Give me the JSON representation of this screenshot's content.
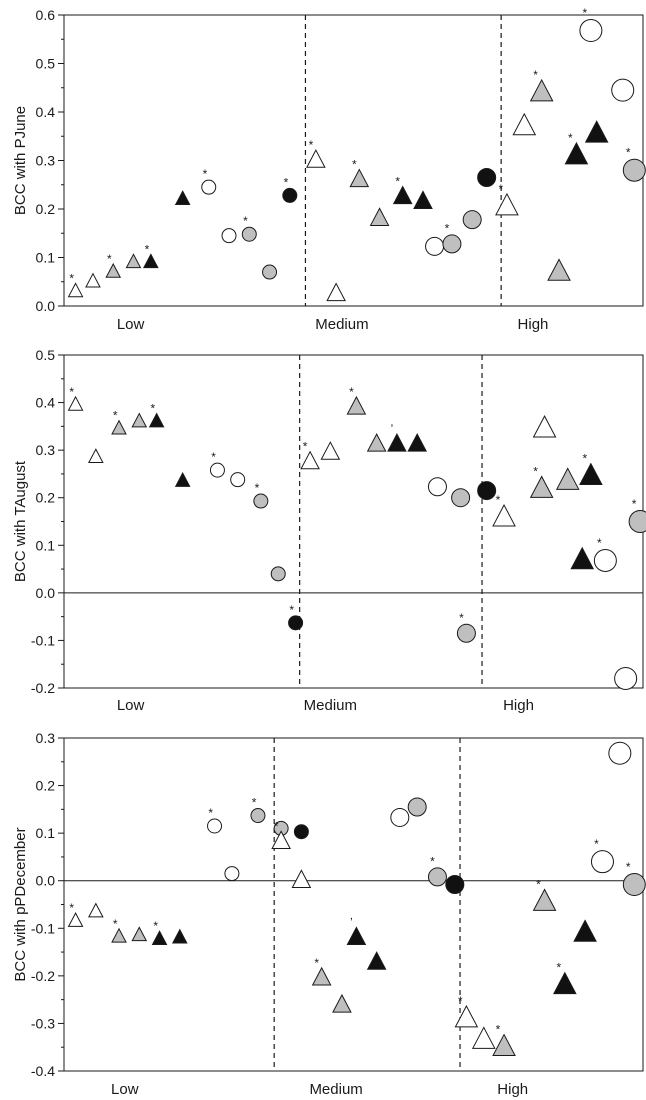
{
  "chart_data": [
    {
      "type": "scatter",
      "ylabel": "BCC with PJune",
      "ylim": [
        0.0,
        0.6
      ],
      "yticks": [
        0.0,
        0.1,
        0.2,
        0.3,
        0.4,
        0.5,
        0.6
      ],
      "tick_decimals": 1,
      "x_range": [
        0,
        10
      ],
      "groups": [
        "Low",
        "Medium",
        "High"
      ],
      "group_label_x": [
        1.15,
        4.8,
        8.1
      ],
      "dividers": [
        4.17,
        7.55
      ],
      "zero_line": false,
      "points": [
        {
          "x": 0.2,
          "y": 0.03,
          "shape": "triangle",
          "fill": "white",
          "size": "small",
          "star": "*"
        },
        {
          "x": 0.5,
          "y": 0.05,
          "shape": "triangle",
          "fill": "white",
          "size": "small",
          "star": ""
        },
        {
          "x": 0.85,
          "y": 0.07,
          "shape": "triangle",
          "fill": "gray",
          "size": "small",
          "star": "*"
        },
        {
          "x": 1.2,
          "y": 0.09,
          "shape": "triangle",
          "fill": "gray",
          "size": "small",
          "star": ""
        },
        {
          "x": 1.5,
          "y": 0.09,
          "shape": "triangle",
          "fill": "black",
          "size": "small",
          "star": "*"
        },
        {
          "x": 2.05,
          "y": 0.22,
          "shape": "triangle",
          "fill": "black",
          "size": "small",
          "star": ""
        },
        {
          "x": 2.5,
          "y": 0.245,
          "shape": "circle",
          "fill": "white",
          "size": "small",
          "star": "*"
        },
        {
          "x": 2.85,
          "y": 0.145,
          "shape": "circle",
          "fill": "white",
          "size": "small",
          "star": ""
        },
        {
          "x": 3.2,
          "y": 0.148,
          "shape": "circle",
          "fill": "gray",
          "size": "small",
          "star": "*"
        },
        {
          "x": 3.55,
          "y": 0.07,
          "shape": "circle",
          "fill": "gray",
          "size": "small",
          "star": ""
        },
        {
          "x": 3.9,
          "y": 0.228,
          "shape": "circle",
          "fill": "black",
          "size": "small",
          "star": "*"
        },
        {
          "x": 4.35,
          "y": 0.3,
          "shape": "triangle",
          "fill": "white",
          "size": "medium",
          "star": "*"
        },
        {
          "x": 4.7,
          "y": 0.025,
          "shape": "triangle",
          "fill": "white",
          "size": "medium",
          "star": ""
        },
        {
          "x": 5.1,
          "y": 0.26,
          "shape": "triangle",
          "fill": "gray",
          "size": "medium",
          "star": "*"
        },
        {
          "x": 5.45,
          "y": 0.18,
          "shape": "triangle",
          "fill": "gray",
          "size": "medium",
          "star": ""
        },
        {
          "x": 5.85,
          "y": 0.225,
          "shape": "triangle",
          "fill": "black",
          "size": "medium",
          "star": "*"
        },
        {
          "x": 6.2,
          "y": 0.215,
          "shape": "triangle",
          "fill": "black",
          "size": "medium",
          "star": ""
        },
        {
          "x": 6.4,
          "y": 0.123,
          "shape": "circle",
          "fill": "white",
          "size": "medium",
          "star": ""
        },
        {
          "x": 6.7,
          "y": 0.128,
          "shape": "circle",
          "fill": "gray",
          "size": "medium",
          "star": "*"
        },
        {
          "x": 7.05,
          "y": 0.178,
          "shape": "circle",
          "fill": "gray",
          "size": "medium",
          "star": ""
        },
        {
          "x": 7.3,
          "y": 0.265,
          "shape": "circle",
          "fill": "black",
          "size": "medium",
          "star": ""
        },
        {
          "x": 7.65,
          "y": 0.205,
          "shape": "triangle",
          "fill": "white",
          "size": "large",
          "star": "*"
        },
        {
          "x": 7.95,
          "y": 0.37,
          "shape": "triangle",
          "fill": "white",
          "size": "large",
          "star": ""
        },
        {
          "x": 8.25,
          "y": 0.44,
          "shape": "triangle",
          "fill": "gray",
          "size": "large",
          "star": "*"
        },
        {
          "x": 8.55,
          "y": 0.07,
          "shape": "triangle",
          "fill": "gray",
          "size": "large",
          "star": ""
        },
        {
          "x": 8.85,
          "y": 0.31,
          "shape": "triangle",
          "fill": "black",
          "size": "large",
          "star": "*"
        },
        {
          "x": 9.2,
          "y": 0.355,
          "shape": "triangle",
          "fill": "black",
          "size": "large",
          "star": ""
        },
        {
          "x": 9.1,
          "y": 0.568,
          "shape": "circle",
          "fill": "white",
          "size": "large",
          "star": "*"
        },
        {
          "x": 9.65,
          "y": 0.445,
          "shape": "circle",
          "fill": "white",
          "size": "large",
          "star": ""
        },
        {
          "x": 9.85,
          "y": 0.28,
          "shape": "circle",
          "fill": "gray",
          "size": "large",
          "star": "*"
        }
      ]
    },
    {
      "type": "scatter",
      "ylabel": "BCC with TAugust",
      "ylim": [
        -0.2,
        0.5
      ],
      "yticks": [
        -0.2,
        -0.1,
        0.0,
        0.1,
        0.2,
        0.3,
        0.4,
        0.5
      ],
      "tick_decimals": 1,
      "x_range": [
        0,
        10
      ],
      "groups": [
        "Low",
        "Medium",
        "High"
      ],
      "group_label_x": [
        1.15,
        4.6,
        7.85
      ],
      "dividers": [
        4.07,
        7.22
      ],
      "zero_line": true,
      "points": [
        {
          "x": 0.2,
          "y": 0.395,
          "shape": "triangle",
          "fill": "white",
          "size": "small",
          "star": "*"
        },
        {
          "x": 0.55,
          "y": 0.285,
          "shape": "triangle",
          "fill": "white",
          "size": "small",
          "star": ""
        },
        {
          "x": 0.95,
          "y": 0.345,
          "shape": "triangle",
          "fill": "gray",
          "size": "small",
          "star": "*"
        },
        {
          "x": 1.3,
          "y": 0.36,
          "shape": "triangle",
          "fill": "gray",
          "size": "small",
          "star": ""
        },
        {
          "x": 1.6,
          "y": 0.36,
          "shape": "triangle",
          "fill": "black",
          "size": "small",
          "star": "*"
        },
        {
          "x": 2.05,
          "y": 0.235,
          "shape": "triangle",
          "fill": "black",
          "size": "small",
          "star": ""
        },
        {
          "x": 2.65,
          "y": 0.258,
          "shape": "circle",
          "fill": "white",
          "size": "small",
          "star": "*"
        },
        {
          "x": 3.0,
          "y": 0.238,
          "shape": "circle",
          "fill": "white",
          "size": "small",
          "star": ""
        },
        {
          "x": 3.4,
          "y": 0.193,
          "shape": "circle",
          "fill": "gray",
          "size": "small",
          "star": "*"
        },
        {
          "x": 3.7,
          "y": 0.04,
          "shape": "circle",
          "fill": "gray",
          "size": "small",
          "star": ""
        },
        {
          "x": 4.0,
          "y": -0.063,
          "shape": "circle",
          "fill": "black",
          "size": "small",
          "star": "*"
        },
        {
          "x": 4.25,
          "y": 0.275,
          "shape": "triangle",
          "fill": "white",
          "size": "medium",
          "star": "*"
        },
        {
          "x": 4.6,
          "y": 0.295,
          "shape": "triangle",
          "fill": "white",
          "size": "medium",
          "star": ""
        },
        {
          "x": 5.05,
          "y": 0.39,
          "shape": "triangle",
          "fill": "gray",
          "size": "medium",
          "star": "*"
        },
        {
          "x": 5.4,
          "y": 0.312,
          "shape": "triangle",
          "fill": "gray",
          "size": "medium",
          "star": ""
        },
        {
          "x": 5.75,
          "y": 0.312,
          "shape": "triangle",
          "fill": "black",
          "size": "medium",
          "star": "ʼ"
        },
        {
          "x": 6.1,
          "y": 0.312,
          "shape": "triangle",
          "fill": "black",
          "size": "medium",
          "star": ""
        },
        {
          "x": 6.45,
          "y": 0.223,
          "shape": "circle",
          "fill": "white",
          "size": "medium",
          "star": ""
        },
        {
          "x": 6.85,
          "y": 0.2,
          "shape": "circle",
          "fill": "gray",
          "size": "medium",
          "star": ""
        },
        {
          "x": 6.95,
          "y": -0.085,
          "shape": "circle",
          "fill": "gray",
          "size": "medium",
          "star": "*"
        },
        {
          "x": 7.3,
          "y": 0.215,
          "shape": "circle",
          "fill": "black",
          "size": "medium",
          "star": ""
        },
        {
          "x": 7.6,
          "y": 0.158,
          "shape": "triangle",
          "fill": "white",
          "size": "large",
          "star": "*"
        },
        {
          "x": 8.3,
          "y": 0.345,
          "shape": "triangle",
          "fill": "white",
          "size": "large",
          "star": ""
        },
        {
          "x": 8.25,
          "y": 0.218,
          "shape": "triangle",
          "fill": "gray",
          "size": "large",
          "star": "*"
        },
        {
          "x": 8.7,
          "y": 0.235,
          "shape": "triangle",
          "fill": "gray",
          "size": "large",
          "star": ""
        },
        {
          "x": 9.1,
          "y": 0.245,
          "shape": "triangle",
          "fill": "black",
          "size": "large",
          "star": "*"
        },
        {
          "x": 8.95,
          "y": 0.068,
          "shape": "triangle",
          "fill": "black",
          "size": "large",
          "star": ""
        },
        {
          "x": 9.35,
          "y": 0.068,
          "shape": "circle",
          "fill": "white",
          "size": "large",
          "star": "*"
        },
        {
          "x": 9.7,
          "y": -0.18,
          "shape": "circle",
          "fill": "white",
          "size": "large",
          "star": ""
        },
        {
          "x": 9.95,
          "y": 0.15,
          "shape": "circle",
          "fill": "gray",
          "size": "large",
          "star": "*"
        }
      ]
    },
    {
      "type": "scatter",
      "ylabel": "BCC with pPDecember",
      "ylim": [
        -0.4,
        0.3
      ],
      "yticks": [
        -0.4,
        -0.3,
        -0.2,
        -0.1,
        0.0,
        0.1,
        0.2,
        0.3
      ],
      "tick_decimals": 1,
      "x_range": [
        0,
        10
      ],
      "groups": [
        "Low",
        "Medium",
        "High"
      ],
      "group_label_x": [
        1.05,
        4.7,
        7.75
      ],
      "dividers": [
        3.63,
        6.84
      ],
      "zero_line": true,
      "points": [
        {
          "x": 0.2,
          "y": -0.085,
          "shape": "triangle",
          "fill": "white",
          "size": "small",
          "star": "*"
        },
        {
          "x": 0.55,
          "y": -0.065,
          "shape": "triangle",
          "fill": "white",
          "size": "small",
          "star": ""
        },
        {
          "x": 0.95,
          "y": -0.118,
          "shape": "triangle",
          "fill": "gray",
          "size": "small",
          "star": "*"
        },
        {
          "x": 1.3,
          "y": -0.115,
          "shape": "triangle",
          "fill": "gray",
          "size": "small",
          "star": ""
        },
        {
          "x": 1.65,
          "y": -0.123,
          "shape": "triangle",
          "fill": "black",
          "size": "small",
          "star": "*"
        },
        {
          "x": 2.0,
          "y": -0.12,
          "shape": "triangle",
          "fill": "black",
          "size": "small",
          "star": ""
        },
        {
          "x": 2.6,
          "y": 0.115,
          "shape": "circle",
          "fill": "white",
          "size": "small",
          "star": "*"
        },
        {
          "x": 2.9,
          "y": 0.015,
          "shape": "circle",
          "fill": "white",
          "size": "small",
          "star": ""
        },
        {
          "x": 3.35,
          "y": 0.137,
          "shape": "circle",
          "fill": "gray",
          "size": "small",
          "star": "*"
        },
        {
          "x": 3.75,
          "y": 0.11,
          "shape": "circle",
          "fill": "gray",
          "size": "small",
          "star": ""
        },
        {
          "x": 4.1,
          "y": 0.103,
          "shape": "circle",
          "fill": "black",
          "size": "small",
          "star": ""
        },
        {
          "x": 3.75,
          "y": 0.082,
          "shape": "triangle",
          "fill": "white",
          "size": "medium",
          "star": "*"
        },
        {
          "x": 4.1,
          "y": 0.0,
          "shape": "triangle",
          "fill": "white",
          "size": "medium",
          "star": ""
        },
        {
          "x": 4.45,
          "y": -0.205,
          "shape": "triangle",
          "fill": "gray",
          "size": "medium",
          "star": "*"
        },
        {
          "x": 4.8,
          "y": -0.262,
          "shape": "triangle",
          "fill": "gray",
          "size": "medium",
          "star": ""
        },
        {
          "x": 5.05,
          "y": -0.12,
          "shape": "triangle",
          "fill": "black",
          "size": "medium",
          "star": "ʼ"
        },
        {
          "x": 5.4,
          "y": -0.172,
          "shape": "triangle",
          "fill": "black",
          "size": "medium",
          "star": ""
        },
        {
          "x": 5.8,
          "y": 0.133,
          "shape": "circle",
          "fill": "white",
          "size": "medium",
          "star": ""
        },
        {
          "x": 6.1,
          "y": 0.155,
          "shape": "circle",
          "fill": "gray",
          "size": "medium",
          "star": ""
        },
        {
          "x": 6.45,
          "y": 0.008,
          "shape": "circle",
          "fill": "gray",
          "size": "medium",
          "star": "*"
        },
        {
          "x": 6.75,
          "y": -0.008,
          "shape": "circle",
          "fill": "black",
          "size": "medium",
          "star": ""
        },
        {
          "x": 6.95,
          "y": -0.29,
          "shape": "triangle",
          "fill": "white",
          "size": "large",
          "star": "*"
        },
        {
          "x": 7.25,
          "y": -0.335,
          "shape": "triangle",
          "fill": "white",
          "size": "large",
          "star": ""
        },
        {
          "x": 7.6,
          "y": -0.35,
          "shape": "triangle",
          "fill": "gray",
          "size": "large",
          "star": "*"
        },
        {
          "x": 8.3,
          "y": -0.045,
          "shape": "triangle",
          "fill": "gray",
          "size": "large",
          "star": "*"
        },
        {
          "x": 8.65,
          "y": -0.22,
          "shape": "triangle",
          "fill": "black",
          "size": "large",
          "star": "*"
        },
        {
          "x": 9.0,
          "y": -0.11,
          "shape": "triangle",
          "fill": "black",
          "size": "large",
          "star": ""
        },
        {
          "x": 9.3,
          "y": 0.04,
          "shape": "circle",
          "fill": "white",
          "size": "large",
          "star": "*"
        },
        {
          "x": 9.6,
          "y": 0.268,
          "shape": "circle",
          "fill": "white",
          "size": "large",
          "star": ""
        },
        {
          "x": 9.85,
          "y": -0.008,
          "shape": "circle",
          "fill": "gray",
          "size": "large",
          "star": "*"
        }
      ]
    }
  ],
  "colors": {
    "white": "#ffffff",
    "gray": "#bfbfbf",
    "black": "#111111",
    "stroke": "#1a1a1a"
  }
}
